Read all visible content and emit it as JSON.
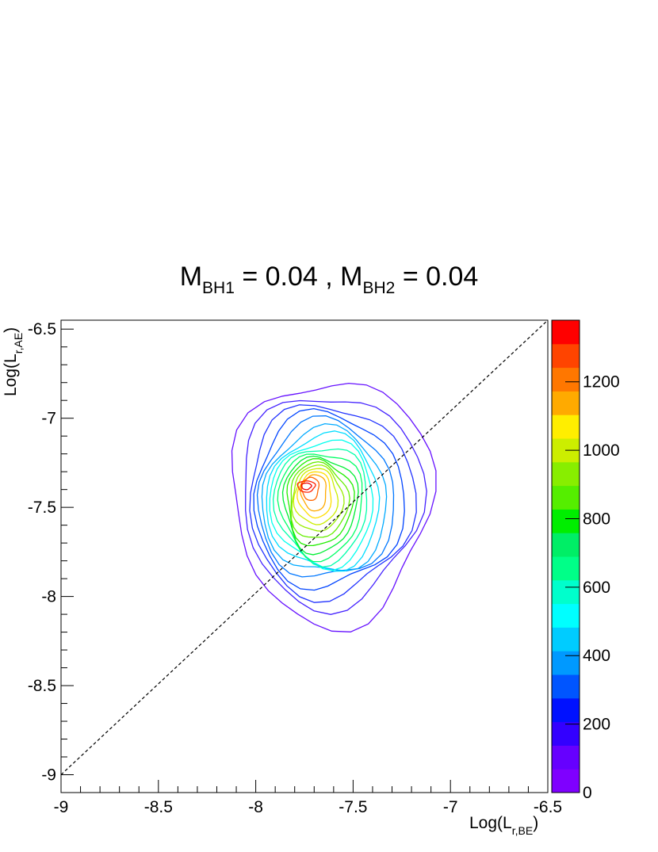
{
  "title": {
    "m1_symbol": "M",
    "m1_sub": "BH1",
    "m1_value": "= 0.04 ,",
    "m2_symbol": "M",
    "m2_sub": "BH2",
    "m2_value": "= 0.04"
  },
  "axes": {
    "x_label_main": "Log(L",
    "x_label_sub": "r,BE",
    "x_label_close": ")",
    "y_label_main": "Log(L",
    "y_label_sub": "r,AE",
    "y_label_close": ")"
  },
  "chart_data": {
    "type": "contour",
    "xlim": [
      -9,
      -6.5
    ],
    "ylim": [
      -9.1,
      -6.45
    ],
    "x_ticks": [
      -9,
      -8.5,
      -8,
      -7.5,
      -7,
      -6.5
    ],
    "x_tick_labels": [
      "-9",
      "-8.5",
      "-8",
      "-7.5",
      "-7",
      "-6.5"
    ],
    "y_ticks": [
      -9,
      -8.5,
      -8,
      -7.5,
      -7,
      -6.5
    ],
    "y_tick_labels": [
      "-9",
      "-8.5",
      "-8",
      "-7.5",
      "-7",
      "-6.5"
    ],
    "diagonal_line": {
      "style": "dashed",
      "color": "#000000",
      "from": [
        -9,
        -9
      ],
      "to": [
        -6.5,
        -6.45
      ]
    },
    "colorbar": {
      "min": 0,
      "max": 1380,
      "tick_values": [
        0,
        200,
        400,
        600,
        800,
        1000,
        1200
      ],
      "tick_labels": [
        "0",
        "200",
        "400",
        "600",
        "800",
        "1000",
        "1200"
      ],
      "colors": [
        "#7f00ff",
        "#6600ff",
        "#3300ff",
        "#0011ff",
        "#0055ff",
        "#0099ff",
        "#00ccff",
        "#00ffff",
        "#00ffcc",
        "#00ff88",
        "#00ee66",
        "#00ee00",
        "#55ee00",
        "#88ee00",
        "#ccee00",
        "#ffee00",
        "#ffaa00",
        "#ff7700",
        "#ff4400",
        "#ff0000"
      ]
    },
    "contours": {
      "center": [
        -7.73,
        -7.38
      ],
      "levels": [
        {
          "level": 69,
          "color": "#6611ff",
          "rx": 0.515,
          "ry": 0.74,
          "dx": 0.12,
          "dy": -0.03
        },
        {
          "level": 138,
          "color": "#4422ff",
          "rx": 0.465,
          "ry": 0.64,
          "dx": 0.115,
          "dy": -0.03
        },
        {
          "level": 207,
          "color": "#2233ff",
          "rx": 0.425,
          "ry": 0.58,
          "dx": 0.11,
          "dy": -0.04
        },
        {
          "level": 276,
          "color": "#0044ff",
          "rx": 0.385,
          "ry": 0.53,
          "dx": 0.1,
          "dy": -0.045
        },
        {
          "level": 345,
          "color": "#0077ff",
          "rx": 0.35,
          "ry": 0.48,
          "dx": 0.09,
          "dy": -0.05
        },
        {
          "level": 414,
          "color": "#00aaff",
          "rx": 0.32,
          "ry": 0.44,
          "dx": 0.085,
          "dy": -0.06
        },
        {
          "level": 483,
          "color": "#00ddff",
          "rx": 0.29,
          "ry": 0.41,
          "dx": 0.08,
          "dy": -0.065
        },
        {
          "level": 552,
          "color": "#00ffee",
          "rx": 0.265,
          "ry": 0.38,
          "dx": 0.075,
          "dy": -0.07
        },
        {
          "level": 621,
          "color": "#00ffaa",
          "rx": 0.24,
          "ry": 0.35,
          "dx": 0.07,
          "dy": -0.075
        },
        {
          "level": 690,
          "color": "#00ff66",
          "rx": 0.215,
          "ry": 0.32,
          "dx": 0.065,
          "dy": -0.08
        },
        {
          "level": 759,
          "color": "#00ee33",
          "rx": 0.19,
          "ry": 0.29,
          "dx": 0.06,
          "dy": -0.08
        },
        {
          "level": 828,
          "color": "#22ee00",
          "rx": 0.17,
          "ry": 0.26,
          "dx": 0.055,
          "dy": -0.075
        },
        {
          "level": 897,
          "color": "#66ee00",
          "rx": 0.15,
          "ry": 0.23,
          "dx": 0.05,
          "dy": -0.07
        },
        {
          "level": 966,
          "color": "#99ee00",
          "rx": 0.13,
          "ry": 0.2,
          "dx": 0.045,
          "dy": -0.06
        },
        {
          "level": 1035,
          "color": "#ccee00",
          "rx": 0.11,
          "ry": 0.17,
          "dx": 0.04,
          "dy": -0.05
        },
        {
          "level": 1104,
          "color": "#ffdd00",
          "rx": 0.085,
          "ry": 0.14,
          "dx": 0.035,
          "dy": -0.04
        },
        {
          "level": 1173,
          "color": "#ffaa00",
          "rx": 0.065,
          "ry": 0.11,
          "dx": 0.03,
          "dy": -0.03
        },
        {
          "level": 1242,
          "color": "#ff6600",
          "rx": 0.045,
          "ry": 0.07,
          "dx": 0.01,
          "dy": -0.01
        },
        {
          "level": 1311,
          "color": "#ff2200",
          "rx": 0.045,
          "ry": 0.034,
          "dx": -0.01,
          "dy": 0.0
        },
        {
          "level": 1380,
          "color": "#ee0000",
          "rx": 0.025,
          "ry": 0.02,
          "dx": -0.01,
          "dy": 0.0
        }
      ]
    }
  }
}
